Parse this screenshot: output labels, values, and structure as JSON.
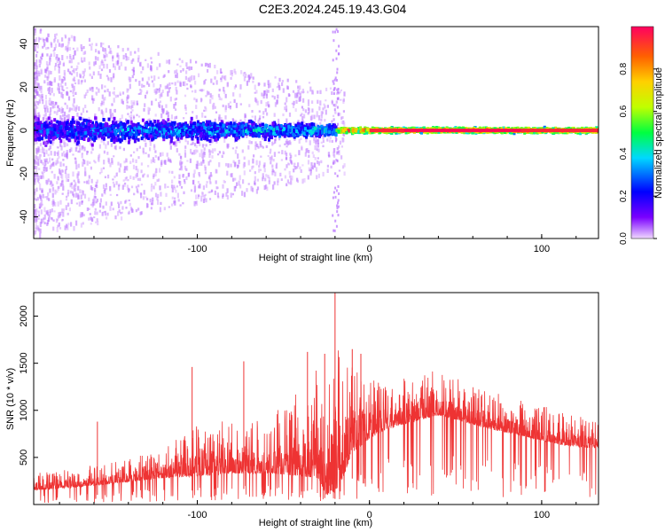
{
  "figure": {
    "title": "C2E3.2024.245.19.43.G04"
  },
  "chart_data": [
    {
      "type": "heatmap",
      "title": "C2E3.2024.245.19.43.G04",
      "xlabel": "Height of straight line (km)",
      "ylabel": "Frequency (Hz)",
      "xlim": [
        -195,
        133
      ],
      "ylim": [
        -50,
        48
      ],
      "xticks": [
        -100,
        0,
        100
      ],
      "xtick_labels": [
        "-100",
        "0",
        "100"
      ],
      "yticks": [
        -40,
        -20,
        0,
        20,
        40
      ],
      "ytick_labels": [
        "-40",
        "-20",
        "0",
        "20",
        "40"
      ],
      "colorbar": {
        "label": "Normalized spectral amplitude",
        "range": [
          0,
          1
        ],
        "ticks": [
          0.0,
          0.2,
          0.4,
          0.6,
          0.8
        ],
        "tick_labels": [
          "0.0",
          "0.2",
          "0.4",
          "0.6",
          "0.8"
        ],
        "colormap": [
          "#f0d8ff",
          "#7a00ff",
          "#0000ff",
          "#00d8ff",
          "#00ff40",
          "#c0ff00",
          "#ffd000",
          "#ff6000",
          "#ff0060"
        ]
      },
      "description_points": {
        "center_frequency_hz": 0,
        "x_transition_km": -20,
        "high_amplitude_x_range_km": [
          0,
          133
        ]
      }
    },
    {
      "type": "line",
      "xlabel": "Height of straight line (km)",
      "ylabel": "SNR (10 * v/v)",
      "xlim": [
        -195,
        133
      ],
      "ylim": [
        0,
        2250
      ],
      "xticks": [
        -100,
        0,
        100
      ],
      "xtick_labels": [
        "-100",
        "0",
        "100"
      ],
      "yticks": [
        500,
        1000,
        1500,
        2000
      ],
      "ytick_labels": [
        "500",
        "1000",
        "1500",
        "2000"
      ],
      "color": "#ee3333",
      "envelope": {
        "x": [
          -195,
          -180,
          -160,
          -140,
          -120,
          -100,
          -80,
          -70,
          -60,
          -50,
          -40,
          -30,
          -25,
          -20,
          -15,
          -10,
          0,
          10,
          20,
          30,
          40,
          50,
          60,
          70,
          80,
          90,
          100,
          110,
          120,
          133
        ],
        "base": [
          150,
          170,
          200,
          240,
          280,
          300,
          330,
          330,
          330,
          320,
          300,
          280,
          100,
          120,
          300,
          550,
          700,
          800,
          850,
          900,
          950,
          900,
          850,
          800,
          760,
          720,
          680,
          640,
          610,
          600
        ],
        "peak": [
          330,
          360,
          420,
          480,
          600,
          860,
          900,
          1000,
          800,
          1100,
          1250,
          1500,
          800,
          2300,
          1400,
          1600,
          1500,
          1300,
          1350,
          1450,
          1400,
          1350,
          1250,
          1200,
          1150,
          1100,
          1050,
          1000,
          950,
          900
        ]
      },
      "spikes": [
        {
          "x": -20,
          "y": 2250
        },
        {
          "x": -10,
          "y": 1650
        },
        {
          "x": -5,
          "y": 1600
        },
        {
          "x": -36,
          "y": 1620
        },
        {
          "x": -26,
          "y": 1600
        },
        {
          "x": -73,
          "y": 1520
        },
        {
          "x": -103,
          "y": 1460
        },
        {
          "x": -158,
          "y": 880
        }
      ]
    }
  ]
}
